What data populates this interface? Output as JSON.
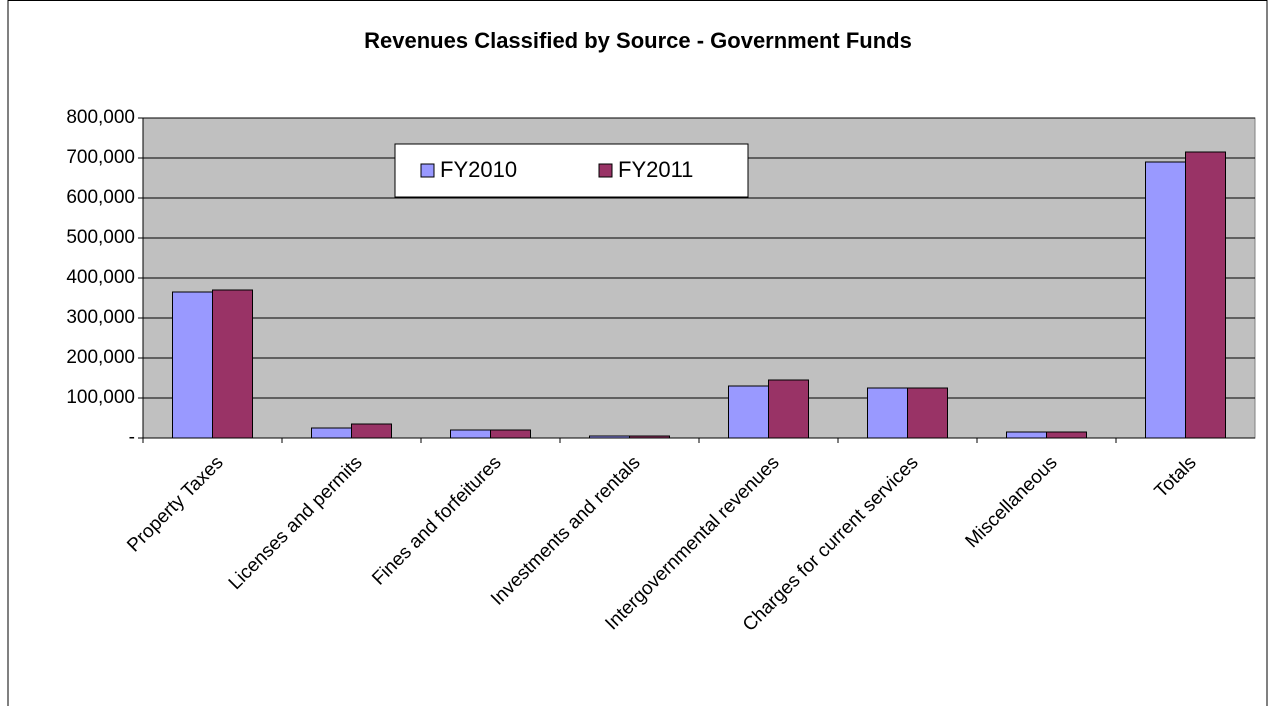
{
  "chart_data": {
    "type": "bar",
    "title": "Revenues Classified by Source - Government Funds",
    "categories": [
      "Property Taxes",
      "Licenses and permits",
      "Fines and forfeitures",
      "Investments and rentals",
      "Intergovernmental revenues",
      "Charges for current services",
      "Miscellaneous",
      "Totals"
    ],
    "series": [
      {
        "name": "FY2010",
        "color": "#9999ff",
        "values": [
          365000,
          25000,
          20000,
          5000,
          130000,
          125000,
          15000,
          690000
        ]
      },
      {
        "name": "FY2011",
        "color": "#993366",
        "values": [
          370000,
          35000,
          20000,
          5000,
          145000,
          125000,
          15000,
          715000
        ]
      }
    ],
    "ylim": [
      0,
      800000
    ],
    "yticks": [
      {
        "value": 0,
        "label": "-"
      },
      {
        "value": 100000,
        "label": "100,000"
      },
      {
        "value": 200000,
        "label": "200,000"
      },
      {
        "value": 300000,
        "label": "300,000"
      },
      {
        "value": 400000,
        "label": "400,000"
      },
      {
        "value": 500000,
        "label": "500,000"
      },
      {
        "value": 600000,
        "label": "600,000"
      },
      {
        "value": 700000,
        "label": "700,000"
      },
      {
        "value": 800000,
        "label": "800,000"
      }
    ],
    "grid": true,
    "legend": "top"
  }
}
